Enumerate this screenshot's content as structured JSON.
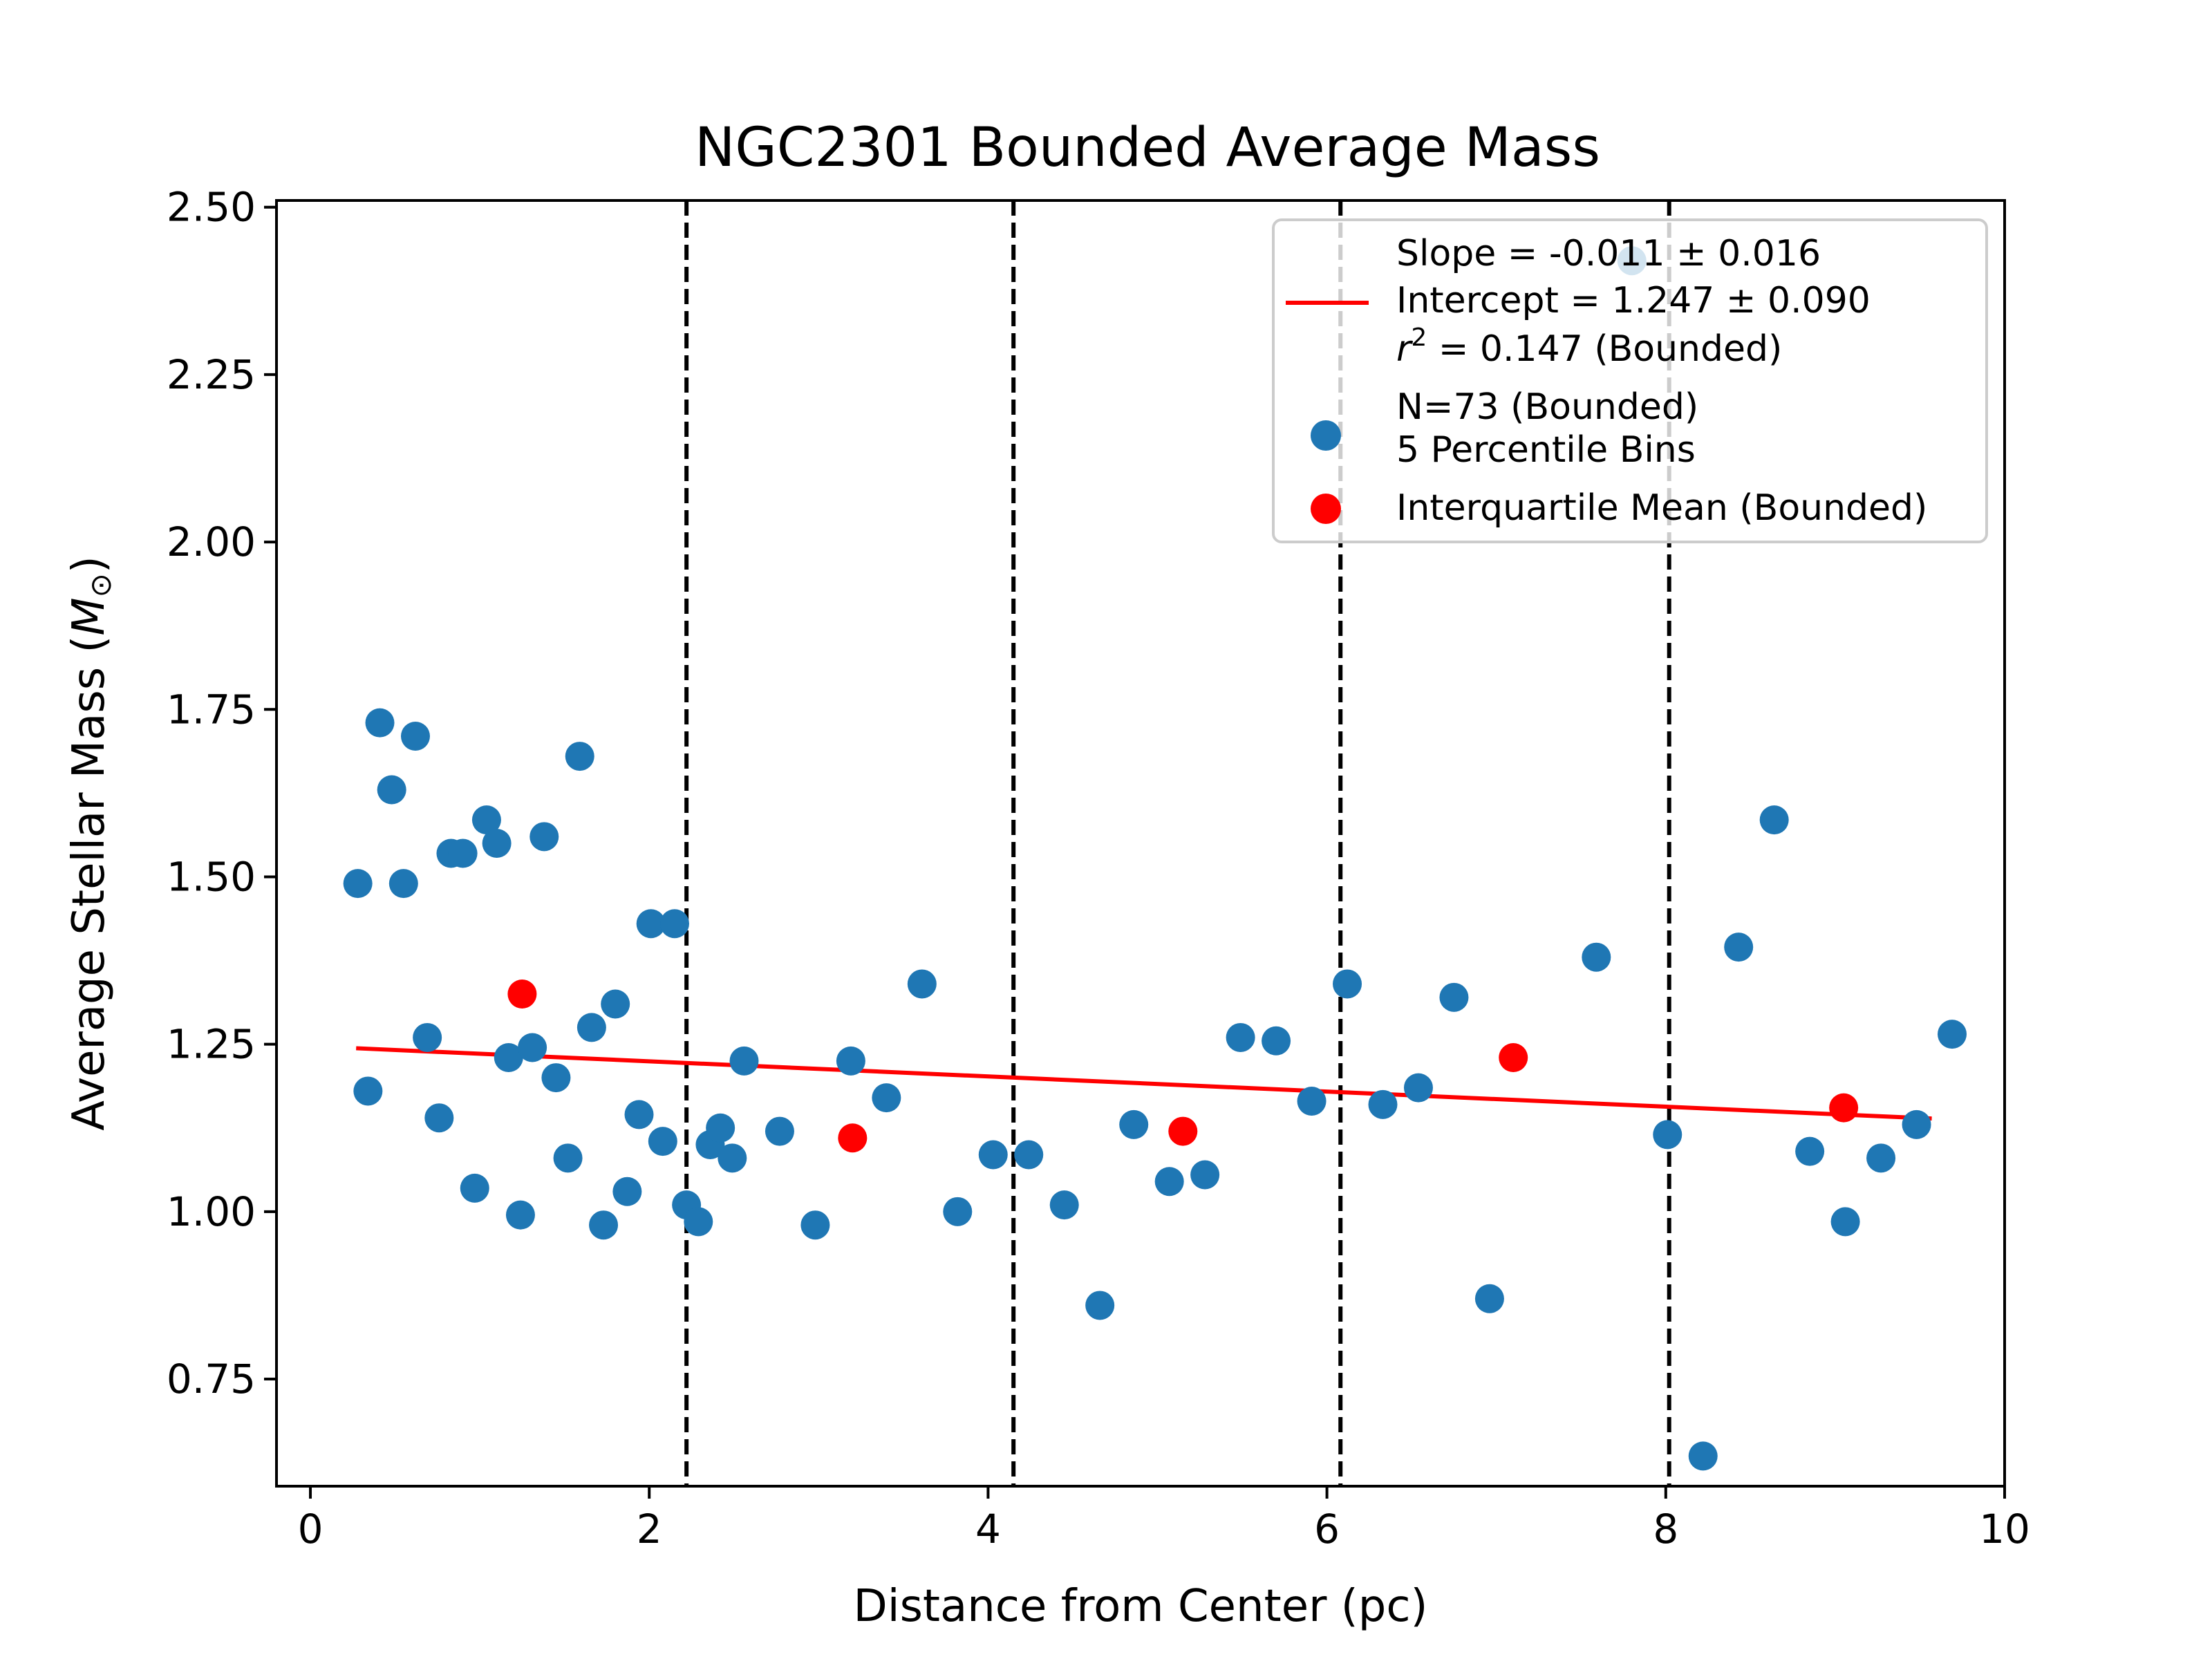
{
  "chart_data": {
    "type": "scatter",
    "title": "NGC2301 Bounded Average Mass",
    "xlabel": "Distance from Center (pc)",
    "ylabel_main": "Average Stellar Mass (",
    "ylabel_symbol": "M",
    "ylabel_sub": "⊙",
    "ylabel_close": ")",
    "xlim": [
      -0.2,
      10.0
    ],
    "ylim": [
      0.59,
      2.51
    ],
    "xticks": [
      0,
      2,
      4,
      6,
      8,
      10
    ],
    "xtick_labels": [
      "0",
      "2",
      "4",
      "6",
      "8",
      "10"
    ],
    "yticks": [
      0.75,
      1.0,
      1.25,
      1.5,
      1.75,
      2.0,
      2.25,
      2.5
    ],
    "ytick_labels": [
      "0.75",
      "1.00",
      "1.25",
      "1.50",
      "1.75",
      "2.00",
      "2.25",
      "2.50"
    ],
    "grid": false,
    "legend_position": "top-right",
    "bin_edges": [
      2.22,
      4.15,
      6.08,
      8.02
    ],
    "fit_line": {
      "x": [
        0.27,
        9.57
      ],
      "y": [
        1.244,
        1.139
      ],
      "color": "#ff0000",
      "legend": {
        "slope": "Slope = -0.011 ± 0.016",
        "intercept": "Intercept = 1.247 ± 0.090",
        "r2_symbol": "r",
        "r2_exp": "2",
        "r2_rest": " = 0.147 (Bounded)"
      }
    },
    "series": [
      {
        "name_line1": "N=73 (Bounded)",
        "name_line2": "5 Percentile Bins",
        "color": "#1f77b4",
        "points": [
          [
            0.28,
            1.49
          ],
          [
            0.34,
            1.18
          ],
          [
            0.41,
            1.73
          ],
          [
            0.48,
            1.63
          ],
          [
            0.55,
            1.49
          ],
          [
            0.62,
            1.71
          ],
          [
            0.69,
            1.26
          ],
          [
            0.76,
            1.14
          ],
          [
            0.83,
            1.535
          ],
          [
            0.9,
            1.535
          ],
          [
            0.97,
            1.035
          ],
          [
            1.04,
            1.585
          ],
          [
            1.1,
            1.55
          ],
          [
            1.17,
            1.23
          ],
          [
            1.24,
            0.995
          ],
          [
            1.31,
            1.245
          ],
          [
            1.38,
            1.56
          ],
          [
            1.45,
            1.2
          ],
          [
            1.52,
            1.08
          ],
          [
            1.59,
            1.68
          ],
          [
            1.66,
            1.275
          ],
          [
            1.73,
            0.98
          ],
          [
            1.8,
            1.31
          ],
          [
            1.87,
            1.03
          ],
          [
            1.94,
            1.145
          ],
          [
            2.01,
            1.43
          ],
          [
            2.08,
            1.105
          ],
          [
            2.15,
            1.43
          ],
          [
            2.22,
            1.01
          ],
          [
            2.29,
            0.985
          ],
          [
            2.36,
            1.1
          ],
          [
            2.42,
            1.125
          ],
          [
            2.49,
            1.08
          ],
          [
            2.56,
            1.225
          ],
          [
            2.77,
            1.12
          ],
          [
            2.98,
            0.98
          ],
          [
            3.19,
            1.225
          ],
          [
            3.4,
            1.17
          ],
          [
            3.61,
            1.34
          ],
          [
            3.82,
            1.0
          ],
          [
            4.03,
            1.085
          ],
          [
            4.24,
            1.085
          ],
          [
            4.45,
            1.01
          ],
          [
            4.66,
            0.86
          ],
          [
            4.86,
            1.13
          ],
          [
            5.07,
            1.045
          ],
          [
            5.28,
            1.055
          ],
          [
            5.49,
            1.26
          ],
          [
            5.7,
            1.255
          ],
          [
            5.91,
            1.165
          ],
          [
            6.12,
            1.34
          ],
          [
            6.33,
            1.16
          ],
          [
            6.54,
            1.185
          ],
          [
            6.75,
            1.32
          ],
          [
            6.96,
            0.87
          ],
          [
            7.59,
            1.38
          ],
          [
            7.8,
            2.42
          ],
          [
            8.01,
            1.115
          ],
          [
            8.22,
            0.635
          ],
          [
            8.43,
            1.395
          ],
          [
            8.64,
            1.585
          ],
          [
            8.85,
            1.09
          ],
          [
            9.06,
            0.985
          ],
          [
            9.27,
            1.08
          ],
          [
            9.48,
            1.13
          ],
          [
            9.69,
            1.265
          ]
        ]
      },
      {
        "name": "Interquartile Mean (Bounded)",
        "color": "#ff0000",
        "points": [
          [
            1.25,
            1.325
          ],
          [
            3.2,
            1.11
          ],
          [
            5.15,
            1.12
          ],
          [
            7.1,
            1.23
          ],
          [
            9.05,
            1.155
          ]
        ]
      }
    ]
  }
}
